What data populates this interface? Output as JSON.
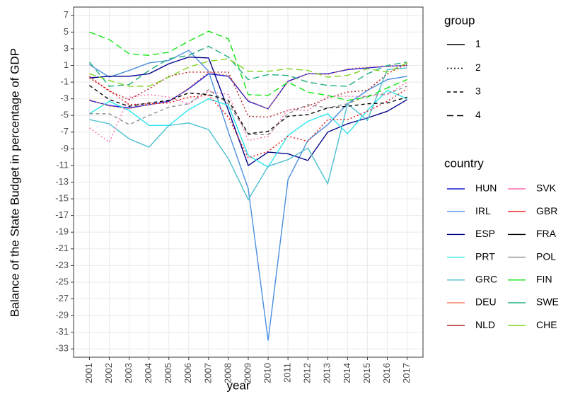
{
  "chart_data": {
    "type": "line",
    "x_label": "year",
    "y_label": "Balance of the State Budget in percentage of GDP",
    "x": [
      2001,
      2002,
      2003,
      2004,
      2005,
      2006,
      2007,
      2008,
      2009,
      2010,
      2011,
      2012,
      2013,
      2014,
      2015,
      2016,
      2017
    ],
    "xlim": [
      2000.2,
      2017.8
    ],
    "xticks": [
      2001,
      2002,
      2003,
      2004,
      2005,
      2006,
      2007,
      2008,
      2009,
      2010,
      2011,
      2012,
      2013,
      2014,
      2015,
      2016,
      2017
    ],
    "ylim": [
      -34,
      8
    ],
    "yticks": [
      7,
      5,
      3,
      1,
      -1,
      -3,
      -5,
      -7,
      -9,
      -11,
      -13,
      -15,
      -17,
      -19,
      -21,
      -23,
      -25,
      -27,
      -29,
      -31,
      -33
    ],
    "grid": true,
    "group_title": "group",
    "groups": [
      {
        "name": "1",
        "dash": "none"
      },
      {
        "name": "2",
        "dash": "2,3"
      },
      {
        "name": "3",
        "dash": "5,4"
      },
      {
        "name": "4",
        "dash": "9,5"
      }
    ],
    "legend_title": "country",
    "series": [
      {
        "name": "HUN",
        "group": "1",
        "color": "#1a1ad6",
        "values": [
          -3.2,
          -3.8,
          -4.1,
          -3.7,
          -3.3,
          -1.8,
          0.0,
          -0.3,
          -3.3,
          -4.2,
          -0.9,
          0.0,
          0.0,
          0.5,
          0.7,
          0.9,
          1.0
        ]
      },
      {
        "name": "IRL",
        "group": "1",
        "color": "#4a8fe0",
        "values": [
          1.1,
          -0.4,
          0.4,
          1.3,
          1.6,
          2.8,
          0.3,
          -7.0,
          -13.8,
          -32.0,
          -12.7,
          -8.0,
          -6.1,
          -3.6,
          -2.0,
          -0.7,
          -0.3
        ]
      },
      {
        "name": "ESP",
        "group": "1",
        "color": "#00008b",
        "values": [
          -0.5,
          -0.3,
          -0.3,
          0.0,
          1.2,
          2.0,
          1.9,
          -4.4,
          -11.0,
          -9.4,
          -9.6,
          -10.4,
          -7.0,
          -6.0,
          -5.3,
          -4.5,
          -3.1
        ]
      },
      {
        "name": "PRT",
        "group": "1",
        "color": "#2ee6ee",
        "values": [
          -4.8,
          -3.3,
          -4.4,
          -6.2,
          -6.2,
          -4.3,
          -3.0,
          -3.8,
          -9.8,
          -11.2,
          -7.4,
          -5.7,
          -4.8,
          -7.2,
          -4.4,
          -2.0,
          -3.0
        ]
      },
      {
        "name": "GRC",
        "group": "1",
        "color": "#4bbfcf",
        "values": [
          -5.5,
          -6.0,
          -7.8,
          -8.8,
          -6.2,
          -5.9,
          -6.7,
          -10.2,
          -15.1,
          -11.1,
          -10.3,
          -8.9,
          -13.2,
          -3.6,
          -5.6,
          0.5,
          0.7
        ]
      },
      {
        "name": "DEU",
        "group": "2",
        "color": "#f07e5e",
        "values": [
          -3.1,
          -3.9,
          -4.2,
          -3.7,
          -3.4,
          -1.7,
          0.2,
          -0.2,
          -3.2,
          -4.2,
          -1.0,
          0.0,
          -0.1,
          0.6,
          0.8,
          0.9,
          1.0
        ]
      },
      {
        "name": "NLD",
        "group": "2",
        "color": "#b22222",
        "values": [
          -0.3,
          -2.1,
          -3.1,
          -1.8,
          -0.3,
          0.2,
          0.2,
          0.2,
          -5.1,
          -5.2,
          -4.4,
          -3.9,
          -2.9,
          -2.2,
          -2.0,
          0.0,
          1.2
        ]
      },
      {
        "name": "SVK",
        "group": "2",
        "color": "#ff6eb4",
        "values": [
          -6.5,
          -8.2,
          -2.8,
          -2.5,
          -2.8,
          -3.6,
          -2.1,
          -2.5,
          -8.0,
          -7.5,
          -4.3,
          -4.4,
          -2.7,
          -2.7,
          -2.7,
          -2.5,
          -1.0
        ]
      },
      {
        "name": "GBR",
        "group": "2",
        "color": "#ee1111",
        "values": [
          -0.5,
          -2.0,
          -3.7,
          -3.6,
          -3.5,
          -2.8,
          -2.6,
          -5.2,
          -10.1,
          -9.3,
          -7.5,
          -8.1,
          -5.5,
          -5.5,
          -4.5,
          -3.3,
          -1.8
        ]
      },
      {
        "name": "FRA",
        "group": "3",
        "color": "#000000",
        "values": [
          -1.4,
          -3.1,
          -3.9,
          -3.5,
          -3.2,
          -2.3,
          -2.5,
          -3.2,
          -7.2,
          -6.9,
          -5.1,
          -4.9,
          -4.1,
          -3.9,
          -3.6,
          -3.5,
          -2.8
        ]
      },
      {
        "name": "POL",
        "group": "3",
        "color": "#8c8c8c",
        "values": [
          -4.8,
          -4.8,
          -6.1,
          -5.0,
          -4.0,
          -3.6,
          -1.9,
          -3.6,
          -7.3,
          -7.3,
          -4.8,
          -3.7,
          -4.1,
          -3.6,
          -2.6,
          -2.4,
          -1.5
        ]
      },
      {
        "name": "FIN",
        "group": "4",
        "color": "#11e611",
        "values": [
          5.0,
          4.1,
          2.4,
          2.2,
          2.6,
          3.9,
          5.1,
          4.2,
          -2.5,
          -2.6,
          -1.0,
          -2.2,
          -2.6,
          -3.2,
          -2.8,
          -1.7,
          -0.7
        ]
      },
      {
        "name": "SWE",
        "group": "4",
        "color": "#1fae7e",
        "values": [
          1.4,
          -1.5,
          -1.3,
          0.4,
          1.8,
          2.2,
          3.3,
          2.0,
          -0.7,
          -0.1,
          -0.2,
          -1.0,
          -1.4,
          -1.5,
          0.0,
          1.0,
          1.4
        ]
      },
      {
        "name": "CHE",
        "group": "4",
        "color": "#80d41f",
        "values": [
          0.0,
          -0.8,
          -1.5,
          -1.5,
          -0.4,
          0.8,
          1.5,
          1.8,
          0.3,
          0.3,
          0.6,
          0.4,
          -0.4,
          -0.2,
          0.6,
          0.2,
          1.3
        ]
      }
    ]
  }
}
